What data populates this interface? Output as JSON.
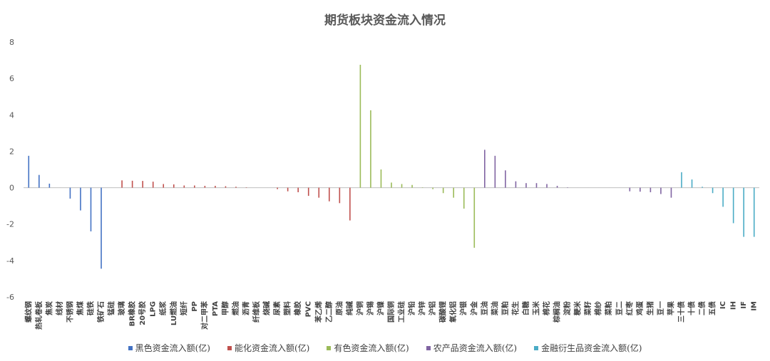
{
  "chart_data": {
    "type": "bar",
    "title": "期货板块资金流入情况",
    "xlabel": "",
    "ylabel": "",
    "ylim": [
      -6,
      8
    ],
    "yticks": [
      -6,
      -4,
      -2,
      0,
      2,
      4,
      6,
      8
    ],
    "grid": false,
    "legend_position": "bottom",
    "series": [
      {
        "name": "黑色资金流入额(亿)",
        "color": "#4472c4",
        "categories": [
          "螺纹钢",
          "热轧卷板",
          "焦炭",
          "线材",
          "不锈钢",
          "焦煤",
          "硅铁",
          "铁矿石",
          "锰硅"
        ],
        "values": [
          1.75,
          0.7,
          0.22,
          0.0,
          -0.6,
          -1.25,
          -2.4,
          -4.45,
          0.0
        ]
      },
      {
        "name": "能化资金流入额(亿)",
        "color": "#c0504d",
        "categories": [
          "玻璃",
          "BR橡胶",
          "20号胶",
          "LPG",
          "纸浆",
          "LU燃油",
          "短纤",
          "PP",
          "对二甲苯",
          "PTA",
          "甲醇",
          "燃油",
          "沥青",
          "纤维板",
          "烧碱",
          "尿素",
          "塑料",
          "橡胶",
          "PVC",
          "苯乙烯",
          "乙二醇",
          "原油",
          "纯碱"
        ],
        "values": [
          0.4,
          0.38,
          0.37,
          0.33,
          0.2,
          0.18,
          0.12,
          0.12,
          0.1,
          0.1,
          0.08,
          0.05,
          0.02,
          0.0,
          0.0,
          -0.08,
          -0.2,
          -0.25,
          -0.45,
          -0.55,
          -0.75,
          -0.85,
          -1.8
        ]
      },
      {
        "name": "有色资金流入额(亿)",
        "color": "#9bbb59",
        "categories": [
          "沪铜",
          "沪锡",
          "沪镍",
          "国际铜",
          "工业硅",
          "沪铅",
          "沪锌",
          "沪铝",
          "碳酸锂",
          "氧化铝",
          "沪银",
          "沪金"
        ],
        "values": [
          6.75,
          4.25,
          1.0,
          0.28,
          0.2,
          0.15,
          0.02,
          -0.08,
          -0.3,
          -0.55,
          -1.15,
          -3.3
        ]
      },
      {
        "name": "农产品资金流入额(亿)",
        "color": "#8064a2",
        "categories": [
          "豆油",
          "菜油",
          "豆粕",
          "花生",
          "白糖",
          "玉米",
          "棉花",
          "棕榈油",
          "淀粉",
          "粳米",
          "菜籽",
          "棉纱",
          "菜粕",
          "豆二",
          "红枣",
          "鸡蛋",
          "生猪",
          "豆一",
          "苹果"
        ],
        "values": [
          2.08,
          1.75,
          0.95,
          0.35,
          0.25,
          0.25,
          0.2,
          0.1,
          0.02,
          0.0,
          0.0,
          0.0,
          0.0,
          0.0,
          -0.2,
          -0.22,
          -0.25,
          -0.35,
          -0.55
        ]
      },
      {
        "name": "金融衍生品资金流入额(亿)",
        "color": "#4bacc6",
        "categories": [
          "三十债",
          "十债",
          "二债",
          "五债",
          "IC",
          "IH",
          "IF",
          "IM"
        ],
        "values": [
          0.85,
          0.45,
          0.05,
          -0.3,
          -1.05,
          -1.95,
          -2.7,
          -2.7
        ]
      }
    ]
  }
}
